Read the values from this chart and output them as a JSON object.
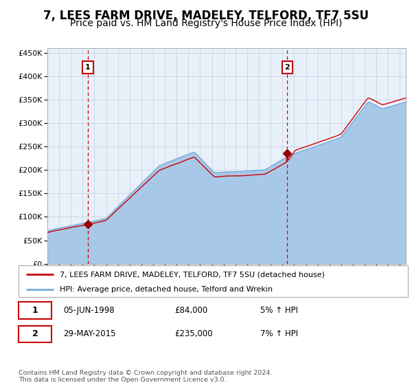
{
  "title": "7, LEES FARM DRIVE, MADELEY, TELFORD, TF7 5SU",
  "subtitle": "Price paid vs. HM Land Registry's House Price Index (HPI)",
  "legend_line1": "7, LEES FARM DRIVE, MADELEY, TELFORD, TF7 5SU (detached house)",
  "legend_line2": "HPI: Average price, detached house, Telford and Wrekin",
  "annotation1_label": "1",
  "annotation1_date": "05-JUN-1998",
  "annotation1_price": "£84,000",
  "annotation1_hpi": "5% ↑ HPI",
  "annotation2_label": "2",
  "annotation2_date": "29-MAY-2015",
  "annotation2_price": "£235,000",
  "annotation2_hpi": "7% ↑ HPI",
  "footer": "Contains HM Land Registry data © Crown copyright and database right 2024.\nThis data is licensed under the Open Government Licence v3.0.",
  "purchase1_year": 1998.44,
  "purchase1_price": 84000,
  "purchase2_year": 2015.41,
  "purchase2_price": 235000,
  "hpi_color": "#a8c8e8",
  "hpi_line_color": "#7aaadc",
  "price_color": "#cc0000",
  "dot_color": "#990000",
  "plot_bg": "#e8f0fa",
  "grid_color": "#c8d4e0",
  "vline_color": "#cc0000",
  "title_fontsize": 12,
  "subtitle_fontsize": 10,
  "tick_fontsize": 8,
  "ylim": [
    0,
    460000
  ],
  "yticks": [
    0,
    50000,
    100000,
    150000,
    200000,
    250000,
    300000,
    350000,
    400000,
    450000
  ],
  "xmin": 1995,
  "xmax": 2025.5
}
